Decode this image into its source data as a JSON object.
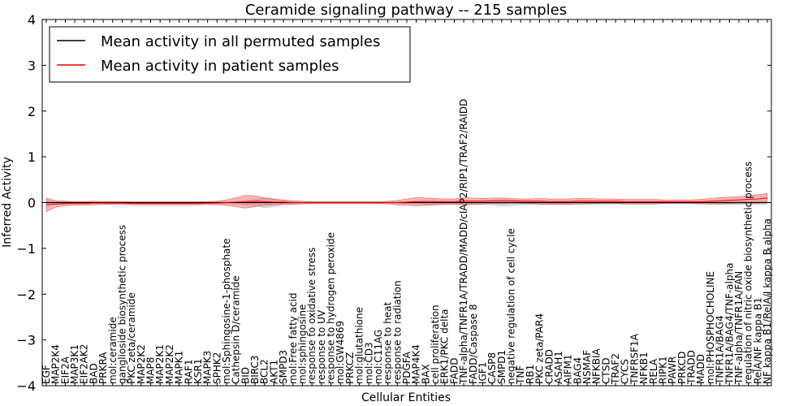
{
  "chart_data": {
    "type": "line",
    "title": "Ceramide signaling pathway -- 215 samples",
    "xlabel": "Cellular Entities",
    "ylabel": "Inferred Activity",
    "ylim": [
      -4,
      4
    ],
    "yticks": [
      -4,
      -3,
      -2,
      -1,
      0,
      1,
      2,
      3,
      4
    ],
    "ytick_labels": [
      "−4",
      "−3",
      "−2",
      "−1",
      "0",
      "1",
      "2",
      "3",
      "4"
    ],
    "grid": false,
    "legend_position": "top-left",
    "categories": [
      "EGF",
      "MAP2K4",
      "EIF2A",
      "MAP3K1",
      "EIF2AK2",
      "BAD",
      "PRKRA",
      "mol:ceramide",
      "ganglioside biosynthetic process",
      "PKC zeta/ceramide",
      "MAP2K2",
      "MAP8",
      "MAP2K1",
      "MAP2K2",
      "MAPK1",
      "RAF1",
      "KSR1",
      "MAPK3",
      "SPHK2",
      "mol:Sphingosine-1-phosphate",
      "Cathepsin D/ceramide",
      "BID",
      "BIRC3",
      "BCL2",
      "AKT1",
      "SMPD3",
      "mol:Free fatty acid",
      "mol:sphingosine",
      "response to oxidative stress",
      "response to UV",
      "response to hydrogen peroxide",
      "mol:GW4869",
      "PRKCZ",
      "mol:glutathione",
      "mol:CD3",
      "mol:C11AG",
      "response to heat",
      "response to radiation",
      "PDGFA",
      "MAP4K4",
      "BAX",
      "cell proliferation",
      "ERK1/PKC delta",
      "FADD",
      "TNF-alpha/TNFR1A/TRADD/MADD/cIAP2/RIP1/TRAF2/RAIDD",
      "FADD/Caspase 8",
      "IGF1",
      "CASP8",
      "SMPD1",
      "negative regulation of cell cycle",
      "TNF",
      "RB1",
      "PKC zeta/PAR4",
      "CRADD",
      "ASAH1",
      "AIFM1",
      "BAG4",
      "NSMAF",
      "NFKBIA",
      "CTSD",
      "TRAF2",
      "CYCS",
      "TNFRSF1A",
      "NFKB1",
      "RELA",
      "RIPK1",
      "PAWR",
      "PRKCD",
      "TRADD",
      "MADD",
      "mol:PHOSPHOCHOLINE",
      "TNFR1A/BAG4",
      "TNFR1A/BAG4/TNF-alpha",
      "TNF-alpha/TNFR1A/FAN",
      "regulation of nitric oxide biosynthetic process",
      "RelA/NF kappa B1",
      "NF kappa B1/RelA/I kappa B alpha"
    ],
    "series": [
      {
        "name": "Mean activity in all permuted samples",
        "color": "#000000",
        "values": [
          0,
          0,
          0,
          0,
          0,
          0,
          0,
          0,
          0,
          0,
          0,
          0,
          0,
          0,
          0,
          0,
          0,
          0,
          0,
          0,
          0,
          0,
          0,
          0,
          0,
          0,
          0,
          0,
          0,
          0,
          0,
          0,
          0,
          0,
          0,
          0,
          0,
          0,
          0,
          0,
          0,
          0,
          0,
          0,
          0,
          0,
          0,
          0,
          0,
          0,
          0,
          0,
          0,
          0,
          0,
          0,
          0,
          0,
          0,
          0,
          0,
          0,
          0,
          0,
          0,
          0,
          0,
          0,
          0,
          0,
          0,
          0,
          0,
          0,
          0,
          0,
          0
        ],
        "band_halfwidth": [
          0.05,
          0.04,
          0.04,
          0.03,
          0.03,
          0.03,
          0.03,
          0.03,
          0.03,
          0.03,
          0.03,
          0.03,
          0.03,
          0.03,
          0.03,
          0.03,
          0.03,
          0.03,
          0.03,
          0.03,
          0.04,
          0.06,
          0.08,
          0.12,
          0.1,
          0.05,
          0.03,
          0.02,
          0.02,
          0.02,
          0.02,
          0.02,
          0.02,
          0.02,
          0.02,
          0.02,
          0.02,
          0.02,
          0.03,
          0.05,
          0.06,
          0.05,
          0.04,
          0.04,
          0.05,
          0.05,
          0.05,
          0.06,
          0.08,
          0.07,
          0.06,
          0.05,
          0.05,
          0.05,
          0.05,
          0.05,
          0.04,
          0.04,
          0.04,
          0.04,
          0.04,
          0.04,
          0.04,
          0.04,
          0.04,
          0.03,
          0.03,
          0.03,
          0.03,
          0.03,
          0.04,
          0.04,
          0.05,
          0.05,
          0.05,
          0.05,
          0.05
        ],
        "band_color": "#bbbbbb"
      },
      {
        "name": "Mean activity in patient samples",
        "color": "#ff0000",
        "values": [
          -0.05,
          -0.03,
          -0.02,
          -0.02,
          -0.02,
          -0.01,
          -0.01,
          -0.01,
          -0.01,
          -0.02,
          -0.02,
          -0.02,
          -0.02,
          -0.02,
          -0.02,
          -0.02,
          -0.02,
          -0.01,
          -0.01,
          0,
          0.01,
          0.02,
          0.03,
          0.02,
          0.01,
          0.01,
          0,
          0,
          0,
          0,
          0,
          0,
          0,
          0,
          0,
          0,
          0,
          0,
          0.01,
          0.02,
          0.02,
          0.02,
          0.02,
          0.02,
          0.03,
          0.03,
          0.03,
          0.04,
          0.04,
          0.04,
          0.03,
          0.03,
          0.03,
          0.02,
          0.02,
          0.02,
          0.03,
          0.03,
          0.03,
          0.03,
          0.03,
          0.02,
          0.02,
          0.02,
          0.02,
          0.02,
          0.02,
          0.02,
          0.02,
          0.02,
          0.03,
          0.04,
          0.05,
          0.06,
          0.07,
          0.08,
          0.1
        ],
        "band_halfwidth": [
          0.15,
          0.07,
          0.05,
          0.04,
          0.04,
          0.04,
          0.03,
          0.03,
          0.03,
          0.03,
          0.03,
          0.03,
          0.03,
          0.03,
          0.03,
          0.03,
          0.03,
          0.03,
          0.04,
          0.06,
          0.1,
          0.14,
          0.12,
          0.08,
          0.06,
          0.05,
          0.04,
          0.03,
          0.02,
          0.02,
          0.02,
          0.02,
          0.02,
          0.02,
          0.02,
          0.02,
          0.03,
          0.05,
          0.07,
          0.09,
          0.08,
          0.07,
          0.06,
          0.06,
          0.08,
          0.07,
          0.06,
          0.06,
          0.06,
          0.05,
          0.05,
          0.05,
          0.06,
          0.06,
          0.06,
          0.06,
          0.06,
          0.06,
          0.05,
          0.05,
          0.05,
          0.05,
          0.05,
          0.05,
          0.05,
          0.04,
          0.04,
          0.04,
          0.04,
          0.05,
          0.06,
          0.07,
          0.07,
          0.07,
          0.08,
          0.09,
          0.1
        ],
        "band_color": "#f07878"
      }
    ]
  }
}
